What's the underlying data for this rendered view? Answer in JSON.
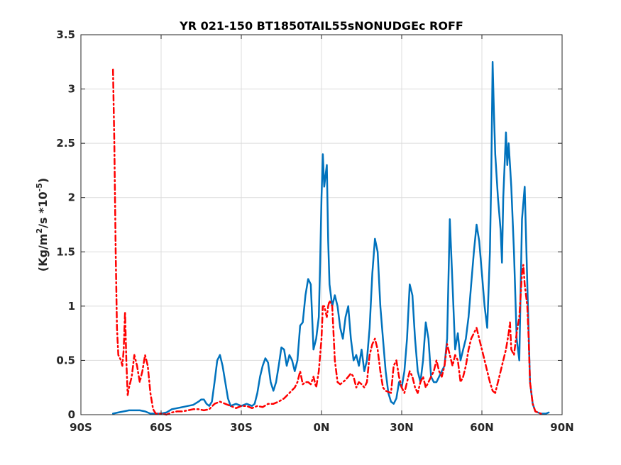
{
  "chart_data": {
    "type": "line",
    "title": "YR 021-150 BT1850TAIL55sNONUDGEc ROFF",
    "ylabel": {
      "main": "(Kg/m",
      "sup1": "2",
      "mid": "/s   *10",
      "sup2": "-5",
      "end": ")"
    },
    "xlim": [
      -90,
      90
    ],
    "ylim": [
      0,
      3.5
    ],
    "xticks": [
      -90,
      -60,
      -30,
      0,
      30,
      60,
      90
    ],
    "xtick_labels": [
      "90S",
      "60S",
      "30S",
      "0N",
      "30N",
      "60N",
      "90N"
    ],
    "yticks": [
      0,
      0.5,
      1,
      1.5,
      2,
      2.5,
      3,
      3.5
    ],
    "ytick_labels": [
      "0",
      "0.5",
      "1",
      "1.5",
      "2",
      "2.5",
      "3",
      "3.5"
    ],
    "grid": true,
    "series": [
      {
        "style": "solid",
        "color": "#0072BD",
        "points": [
          [
            -78,
            0.01
          ],
          [
            -76,
            0.02
          ],
          [
            -74,
            0.03
          ],
          [
            -72,
            0.04
          ],
          [
            -70,
            0.04
          ],
          [
            -68,
            0.04
          ],
          [
            -66,
            0.03
          ],
          [
            -64,
            0.01
          ],
          [
            -62,
            0.01
          ],
          [
            -60,
            0.01
          ],
          [
            -58,
            0.02
          ],
          [
            -56,
            0.05
          ],
          [
            -54,
            0.06
          ],
          [
            -52,
            0.07
          ],
          [
            -50,
            0.08
          ],
          [
            -48,
            0.09
          ],
          [
            -46,
            0.12
          ],
          [
            -45,
            0.14
          ],
          [
            -44,
            0.14
          ],
          [
            -43,
            0.1
          ],
          [
            -42,
            0.08
          ],
          [
            -41,
            0.12
          ],
          [
            -40,
            0.3
          ],
          [
            -39,
            0.5
          ],
          [
            -38,
            0.55
          ],
          [
            -37,
            0.45
          ],
          [
            -36,
            0.3
          ],
          [
            -35,
            0.15
          ],
          [
            -34,
            0.08
          ],
          [
            -32,
            0.1
          ],
          [
            -30,
            0.08
          ],
          [
            -28,
            0.1
          ],
          [
            -26,
            0.08
          ],
          [
            -25,
            0.1
          ],
          [
            -24,
            0.2
          ],
          [
            -23,
            0.35
          ],
          [
            -22,
            0.45
          ],
          [
            -21,
            0.52
          ],
          [
            -20,
            0.48
          ],
          [
            -19,
            0.3
          ],
          [
            -18,
            0.22
          ],
          [
            -17,
            0.3
          ],
          [
            -16,
            0.45
          ],
          [
            -15,
            0.62
          ],
          [
            -14,
            0.6
          ],
          [
            -13,
            0.45
          ],
          [
            -12,
            0.55
          ],
          [
            -11,
            0.5
          ],
          [
            -10,
            0.4
          ],
          [
            -9,
            0.5
          ],
          [
            -8,
            0.82
          ],
          [
            -7,
            0.85
          ],
          [
            -6,
            1.1
          ],
          [
            -5,
            1.25
          ],
          [
            -4,
            1.2
          ],
          [
            -3,
            0.6
          ],
          [
            -2,
            0.7
          ],
          [
            -1,
            0.9
          ],
          [
            -0.5,
            1.4
          ],
          [
            0,
            2.0
          ],
          [
            0.5,
            2.4
          ],
          [
            1,
            2.1
          ],
          [
            1.5,
            2.2
          ],
          [
            2,
            2.3
          ],
          [
            2.5,
            1.6
          ],
          [
            3,
            1.2
          ],
          [
            4,
            1.0
          ],
          [
            5,
            1.1
          ],
          [
            6,
            1.0
          ],
          [
            7,
            0.8
          ],
          [
            8,
            0.7
          ],
          [
            9,
            0.9
          ],
          [
            10,
            1.0
          ],
          [
            11,
            0.7
          ],
          [
            12,
            0.5
          ],
          [
            13,
            0.55
          ],
          [
            14,
            0.45
          ],
          [
            15,
            0.6
          ],
          [
            16,
            0.4
          ],
          [
            17,
            0.5
          ],
          [
            18,
            0.8
          ],
          [
            19,
            1.3
          ],
          [
            20,
            1.62
          ],
          [
            21,
            1.5
          ],
          [
            22,
            1.0
          ],
          [
            23,
            0.7
          ],
          [
            24,
            0.4
          ],
          [
            25,
            0.2
          ],
          [
            26,
            0.12
          ],
          [
            27,
            0.1
          ],
          [
            28,
            0.15
          ],
          [
            29,
            0.3
          ],
          [
            30,
            0.25
          ],
          [
            31,
            0.4
          ],
          [
            32,
            0.7
          ],
          [
            33,
            1.2
          ],
          [
            34,
            1.1
          ],
          [
            35,
            0.7
          ],
          [
            36,
            0.4
          ],
          [
            37,
            0.3
          ],
          [
            38,
            0.5
          ],
          [
            39,
            0.85
          ],
          [
            40,
            0.7
          ],
          [
            41,
            0.35
          ],
          [
            42,
            0.3
          ],
          [
            43,
            0.3
          ],
          [
            44,
            0.35
          ],
          [
            45,
            0.4
          ],
          [
            46,
            0.45
          ],
          [
            47,
            0.7
          ],
          [
            48,
            1.8
          ],
          [
            49,
            1.2
          ],
          [
            50,
            0.6
          ],
          [
            51,
            0.75
          ],
          [
            52,
            0.5
          ],
          [
            53,
            0.6
          ],
          [
            54,
            0.7
          ],
          [
            55,
            0.9
          ],
          [
            56,
            1.2
          ],
          [
            57,
            1.5
          ],
          [
            58,
            1.75
          ],
          [
            59,
            1.6
          ],
          [
            60,
            1.3
          ],
          [
            61,
            1.0
          ],
          [
            62,
            0.8
          ],
          [
            63,
            1.5
          ],
          [
            63.5,
            2.2
          ],
          [
            64,
            3.25
          ],
          [
            64.5,
            2.8
          ],
          [
            65,
            2.4
          ],
          [
            66,
            2.0
          ],
          [
            67,
            1.7
          ],
          [
            67.5,
            1.4
          ],
          [
            68,
            2.0
          ],
          [
            69,
            2.6
          ],
          [
            69.5,
            2.3
          ],
          [
            70,
            2.5
          ],
          [
            70.5,
            2.3
          ],
          [
            71,
            2.1
          ],
          [
            72,
            1.5
          ],
          [
            73,
            0.7
          ],
          [
            74,
            0.5
          ],
          [
            75,
            1.8
          ],
          [
            76,
            2.1
          ],
          [
            77,
            1.2
          ],
          [
            78,
            0.3
          ],
          [
            79,
            0.1
          ],
          [
            80,
            0.03
          ],
          [
            82,
            0.01
          ],
          [
            84,
            0.01
          ],
          [
            85,
            0.02
          ]
        ]
      },
      {
        "style": "dashdot",
        "color": "#FF0000",
        "points": [
          [
            -78,
            3.18
          ],
          [
            -77.5,
            2.5
          ],
          [
            -77,
            1.5
          ],
          [
            -76.5,
            0.8
          ],
          [
            -76,
            0.55
          ],
          [
            -75,
            0.5
          ],
          [
            -74.5,
            0.45
          ],
          [
            -74,
            0.6
          ],
          [
            -73.5,
            0.95
          ],
          [
            -73,
            0.5
          ],
          [
            -72.5,
            0.18
          ],
          [
            -72,
            0.25
          ],
          [
            -71,
            0.35
          ],
          [
            -70,
            0.55
          ],
          [
            -69,
            0.45
          ],
          [
            -68,
            0.3
          ],
          [
            -67,
            0.4
          ],
          [
            -66,
            0.55
          ],
          [
            -65,
            0.45
          ],
          [
            -64,
            0.2
          ],
          [
            -63,
            0.05
          ],
          [
            -62,
            0.01
          ],
          [
            -60,
            0.01
          ],
          [
            -58,
            0.0
          ],
          [
            -56,
            0.02
          ],
          [
            -54,
            0.03
          ],
          [
            -52,
            0.03
          ],
          [
            -50,
            0.04
          ],
          [
            -48,
            0.05
          ],
          [
            -46,
            0.05
          ],
          [
            -44,
            0.04
          ],
          [
            -42,
            0.05
          ],
          [
            -40,
            0.1
          ],
          [
            -38,
            0.12
          ],
          [
            -36,
            0.1
          ],
          [
            -34,
            0.08
          ],
          [
            -32,
            0.06
          ],
          [
            -30,
            0.08
          ],
          [
            -28,
            0.08
          ],
          [
            -26,
            0.06
          ],
          [
            -24,
            0.08
          ],
          [
            -22,
            0.07
          ],
          [
            -20,
            0.1
          ],
          [
            -18,
            0.1
          ],
          [
            -16,
            0.12
          ],
          [
            -14,
            0.15
          ],
          [
            -12,
            0.2
          ],
          [
            -10,
            0.25
          ],
          [
            -9,
            0.3
          ],
          [
            -8,
            0.4
          ],
          [
            -7,
            0.28
          ],
          [
            -6,
            0.3
          ],
          [
            -5,
            0.3
          ],
          [
            -4,
            0.28
          ],
          [
            -3,
            0.35
          ],
          [
            -2,
            0.25
          ],
          [
            -1,
            0.4
          ],
          [
            0,
            0.7
          ],
          [
            0.5,
            1.0
          ],
          [
            1,
            1.0
          ],
          [
            2,
            0.9
          ],
          [
            2.5,
            1.0
          ],
          [
            3,
            1.05
          ],
          [
            4,
            1.0
          ],
          [
            5,
            0.5
          ],
          [
            6,
            0.3
          ],
          [
            7,
            0.28
          ],
          [
            8,
            0.3
          ],
          [
            9,
            0.32
          ],
          [
            10,
            0.35
          ],
          [
            11,
            0.38
          ],
          [
            12,
            0.35
          ],
          [
            13,
            0.25
          ],
          [
            14,
            0.3
          ],
          [
            15,
            0.28
          ],
          [
            16,
            0.25
          ],
          [
            17,
            0.3
          ],
          [
            18,
            0.55
          ],
          [
            19,
            0.65
          ],
          [
            20,
            0.7
          ],
          [
            21,
            0.6
          ],
          [
            22,
            0.4
          ],
          [
            23,
            0.25
          ],
          [
            24,
            0.22
          ],
          [
            26,
            0.2
          ],
          [
            27,
            0.45
          ],
          [
            28,
            0.5
          ],
          [
            29,
            0.35
          ],
          [
            30,
            0.25
          ],
          [
            31,
            0.2
          ],
          [
            32,
            0.3
          ],
          [
            33,
            0.4
          ],
          [
            34,
            0.35
          ],
          [
            35,
            0.25
          ],
          [
            36,
            0.2
          ],
          [
            37,
            0.3
          ],
          [
            38,
            0.35
          ],
          [
            39,
            0.25
          ],
          [
            40,
            0.3
          ],
          [
            41,
            0.35
          ],
          [
            42,
            0.4
          ],
          [
            43,
            0.5
          ],
          [
            44,
            0.4
          ],
          [
            45,
            0.35
          ],
          [
            46,
            0.45
          ],
          [
            47,
            0.65
          ],
          [
            48,
            0.55
          ],
          [
            49,
            0.45
          ],
          [
            50,
            0.55
          ],
          [
            51,
            0.5
          ],
          [
            52,
            0.3
          ],
          [
            53,
            0.35
          ],
          [
            54,
            0.45
          ],
          [
            55,
            0.6
          ],
          [
            56,
            0.7
          ],
          [
            57,
            0.75
          ],
          [
            58,
            0.8
          ],
          [
            59,
            0.7
          ],
          [
            60,
            0.6
          ],
          [
            61,
            0.5
          ],
          [
            62,
            0.4
          ],
          [
            63,
            0.3
          ],
          [
            64,
            0.22
          ],
          [
            65,
            0.2
          ],
          [
            66,
            0.3
          ],
          [
            67,
            0.4
          ],
          [
            68,
            0.5
          ],
          [
            69,
            0.6
          ],
          [
            70,
            0.75
          ],
          [
            70.5,
            0.85
          ],
          [
            71,
            0.6
          ],
          [
            72,
            0.55
          ],
          [
            73,
            0.75
          ],
          [
            74,
            0.9
          ],
          [
            75,
            1.3
          ],
          [
            75.5,
            1.38
          ],
          [
            76,
            1.2
          ],
          [
            77,
            1.0
          ],
          [
            77.5,
            0.7
          ],
          [
            78,
            0.3
          ],
          [
            79,
            0.1
          ],
          [
            80,
            0.03
          ],
          [
            81,
            0.02
          ],
          [
            82,
            0.01
          ],
          [
            83,
            0.0
          ]
        ]
      }
    ]
  }
}
